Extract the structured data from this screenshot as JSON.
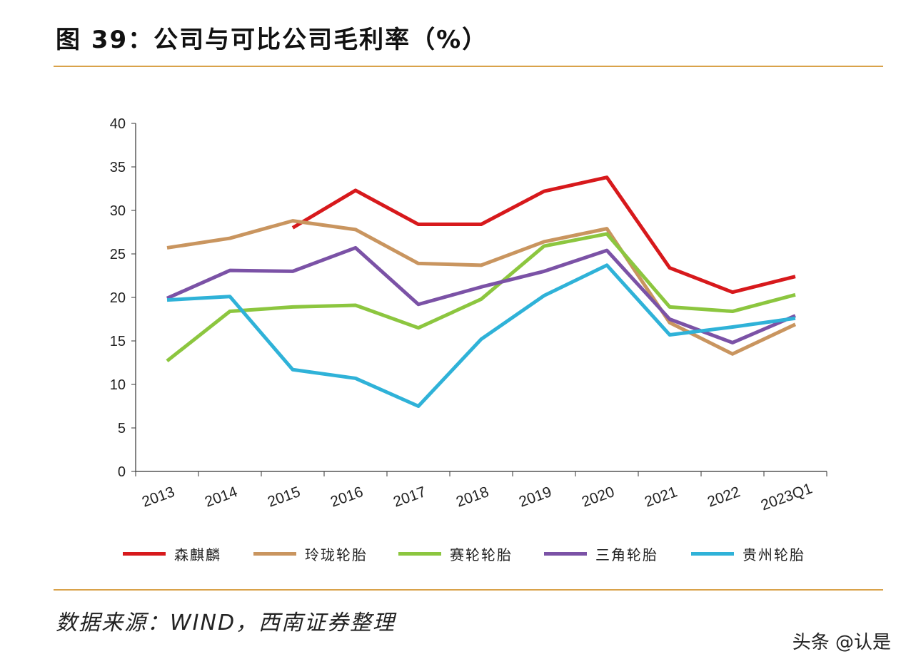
{
  "title": "图 39：公司与可比公司毛利率（%）",
  "source": "数据来源：WIND，西南证券整理",
  "watermark": "头条 @认是",
  "chart_data": {
    "type": "line",
    "title": "",
    "xlabel": "",
    "ylabel": "",
    "ylim": [
      0,
      40
    ],
    "yticks": [
      0,
      5,
      10,
      15,
      20,
      25,
      30,
      35,
      40
    ],
    "grid": false,
    "legend_position": "bottom",
    "categories": [
      "2013",
      "2014",
      "2015",
      "2016",
      "2017",
      "2018",
      "2019",
      "2020",
      "2021",
      "2022",
      "2023Q1"
    ],
    "series": [
      {
        "name": "森麒麟",
        "color": "#d7191c",
        "values": [
          null,
          null,
          28.0,
          32.3,
          28.4,
          28.4,
          32.2,
          33.8,
          23.4,
          20.6,
          22.4
        ]
      },
      {
        "name": "玲珑轮胎",
        "color": "#c9955f",
        "values": [
          25.7,
          26.8,
          28.8,
          27.8,
          23.9,
          23.7,
          26.4,
          27.9,
          17.1,
          13.5,
          16.9
        ]
      },
      {
        "name": "赛轮轮胎",
        "color": "#8cc63f",
        "values": [
          12.7,
          18.4,
          18.9,
          19.1,
          16.5,
          19.8,
          25.9,
          27.3,
          18.9,
          18.4,
          20.3
        ]
      },
      {
        "name": "三角轮胎",
        "color": "#7b52a6",
        "values": [
          19.9,
          23.1,
          23.0,
          25.7,
          19.2,
          21.2,
          23.0,
          25.4,
          17.5,
          14.8,
          17.9
        ]
      },
      {
        "name": "贵州轮胎",
        "color": "#2fb2d8",
        "values": [
          19.7,
          20.1,
          11.7,
          10.7,
          7.5,
          15.2,
          20.2,
          23.7,
          15.7,
          16.6,
          17.6
        ]
      }
    ]
  }
}
